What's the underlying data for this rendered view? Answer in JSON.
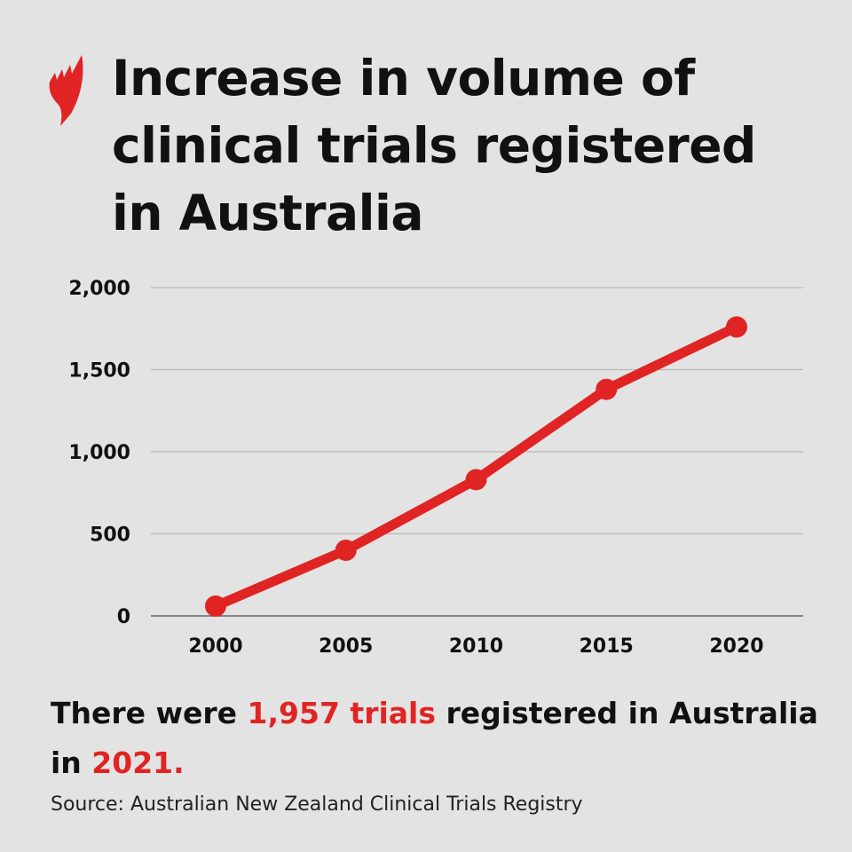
{
  "title": "Increase in volume of clinical trials registered in Australia",
  "logo": "SBS",
  "colors": {
    "accent": "#e02424",
    "background": "#e3e3e3",
    "grid": "#b8b8b8"
  },
  "chart_data": {
    "type": "line",
    "title": "",
    "xlabel": "",
    "ylabel": "",
    "x": [
      "2000",
      "2005",
      "2010",
      "2015",
      "2020"
    ],
    "series": [
      {
        "values": [
          60,
          400,
          830,
          1380,
          1760
        ]
      }
    ],
    "ylim": [
      0,
      2000
    ],
    "yticks": [
      "0",
      "500",
      "1,000",
      "1,500",
      "2,000"
    ],
    "ytick_values": [
      0,
      500,
      1000,
      1500,
      2000
    ],
    "grid": "horizontal",
    "markers": true
  },
  "summary": {
    "part1": "There were ",
    "highlight1": "1,957 trials",
    "part2": " registered in Australia in ",
    "highlight2": "2021."
  },
  "source": "Source: Australian New Zealand Clinical Trials Registry"
}
